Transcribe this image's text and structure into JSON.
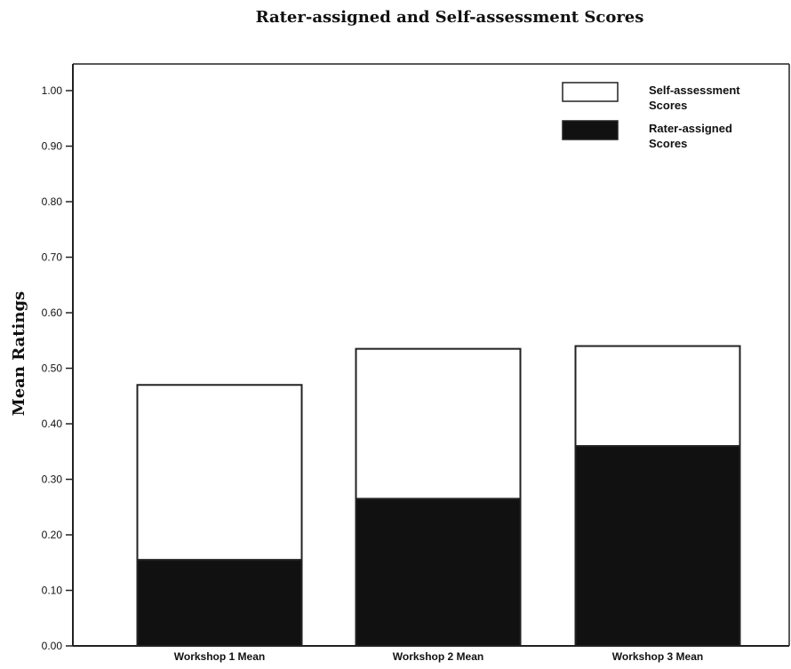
{
  "chart_data": {
    "type": "bar",
    "stacked": true,
    "title": "Rater-assigned and Self-assessment Scores",
    "xlabel": "",
    "ylabel": "Mean Ratings",
    "categories": [
      "Workshop 1 Mean",
      "Workshop 2 Mean",
      "Workshop 3 Mean"
    ],
    "series": [
      {
        "name": "Rater-assigned Scores",
        "color": "#111111",
        "values": [
          0.155,
          0.265,
          0.36
        ]
      },
      {
        "name": "Self-assessment Scores",
        "color": "#ffffff",
        "values": [
          0.315,
          0.27,
          0.18
        ]
      }
    ],
    "ylim": [
      0,
      1
    ],
    "yticks": [
      "0.00",
      "0.10",
      "0.20",
      "0.30",
      "0.40",
      "0.50",
      "0.60",
      "0.70",
      "0.80",
      "0.90",
      "1.00"
    ],
    "grid": false,
    "legend": {
      "position": "top-right",
      "entries": [
        {
          "label_lines": [
            "Self-assessment",
            "Scores"
          ],
          "color": "#ffffff"
        },
        {
          "label_lines": [
            "Rater-assigned",
            "Scores"
          ],
          "color": "#111111"
        }
      ]
    }
  }
}
